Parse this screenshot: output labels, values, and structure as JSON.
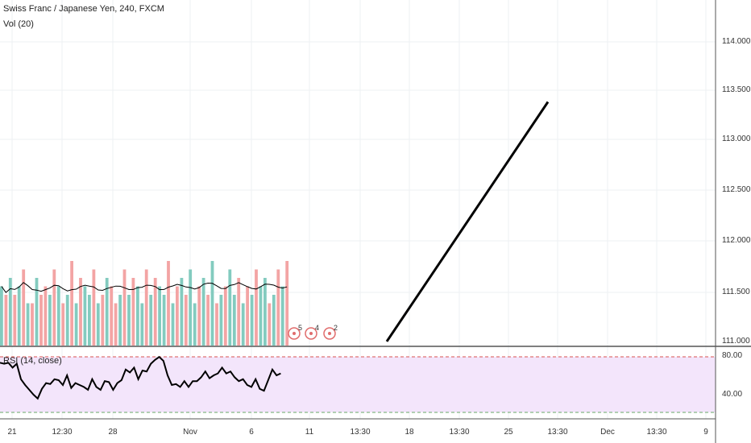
{
  "header": {
    "title": "Swiss Franc / Japanese Yen, 240, FXCM",
    "volume_label": "Vol (20)"
  },
  "rsi": {
    "label": "RSI (14, close)",
    "levels": [
      "80.00",
      "40.00"
    ]
  },
  "price_axis": [
    "114.000",
    "113.500",
    "113.000",
    "112.500",
    "112.000",
    "111.500",
    "111.000"
  ],
  "time_axis": [
    "21",
    "12:30",
    "28",
    "Nov",
    "6",
    "11",
    "13:30",
    "18",
    "13:30",
    "25",
    "13:30",
    "Dec",
    "13:30",
    "9"
  ],
  "events": [
    {
      "icon": "earnings-event-icon",
      "count": "5"
    },
    {
      "icon": "earnings-event-icon",
      "count": "4"
    },
    {
      "icon": "earnings-event-icon",
      "count": "2"
    }
  ],
  "colors": {
    "bull": "#83cbbf",
    "bear": "#f3a4a4",
    "rsi_band": "#f3e5fb",
    "line": "#000000"
  },
  "chart_data": [
    {
      "type": "bar",
      "name": "Vol (20)",
      "values": [
        7,
        6,
        8,
        6,
        7,
        9,
        5,
        5,
        8,
        6,
        7,
        6,
        9,
        7,
        5,
        6,
        10,
        5,
        8,
        7,
        6,
        9,
        5,
        6,
        8,
        7,
        5,
        6,
        9,
        6,
        8,
        7,
        5,
        9,
        6,
        8,
        7,
        6,
        10,
        5,
        7,
        8,
        6,
        9,
        5,
        7,
        8,
        6,
        10,
        5,
        6,
        7,
        9,
        6,
        8,
        5,
        7,
        6,
        9,
        7,
        8,
        5,
        6,
        9,
        7,
        10
      ],
      "colors": [
        "bull",
        "bear",
        "bull",
        "bear",
        "bull",
        "bear",
        "bull",
        "bear",
        "bull",
        "bear",
        "bear",
        "bull",
        "bear",
        "bull",
        "bear",
        "bull",
        "bear",
        "bull",
        "bear",
        "bull",
        "bull",
        "bear",
        "bull",
        "bear",
        "bull",
        "bear",
        "bear",
        "bull",
        "bear",
        "bull",
        "bear",
        "bull",
        "bull",
        "bear",
        "bull",
        "bear",
        "bull",
        "bull",
        "bear",
        "bull",
        "bear",
        "bull",
        "bear",
        "bull",
        "bull",
        "bear",
        "bull",
        "bear",
        "bull",
        "bear",
        "bull",
        "bear",
        "bull",
        "bull",
        "bear",
        "bull",
        "bear",
        "bull",
        "bear",
        "bull",
        "bull",
        "bear",
        "bull",
        "bear",
        "bull",
        "bear"
      ]
    },
    {
      "type": "line",
      "name": "RSI (14, close)",
      "ylim": [
        20,
        85
      ],
      "values": [
        73,
        72,
        73,
        68,
        72,
        56,
        50,
        45,
        40,
        36,
        46,
        52,
        51,
        56,
        55,
        50,
        60,
        47,
        52,
        50,
        48,
        45,
        56,
        48,
        45,
        54,
        53,
        45,
        52,
        55,
        66,
        63,
        68,
        56,
        65,
        64,
        72,
        76,
        79,
        75,
        60,
        50,
        51,
        48,
        54,
        48,
        54,
        54,
        58,
        64,
        57,
        60,
        62,
        68,
        62,
        64,
        58,
        54,
        56,
        50,
        48,
        56,
        46,
        44,
        55,
        66,
        60,
        62
      ]
    },
    {
      "type": "line",
      "name": "drawing",
      "x": [
        "16 Nov",
        "27 Nov"
      ],
      "values": [
        111.0,
        113.42
      ],
      "ylim": [
        110.95,
        114.45
      ]
    }
  ]
}
